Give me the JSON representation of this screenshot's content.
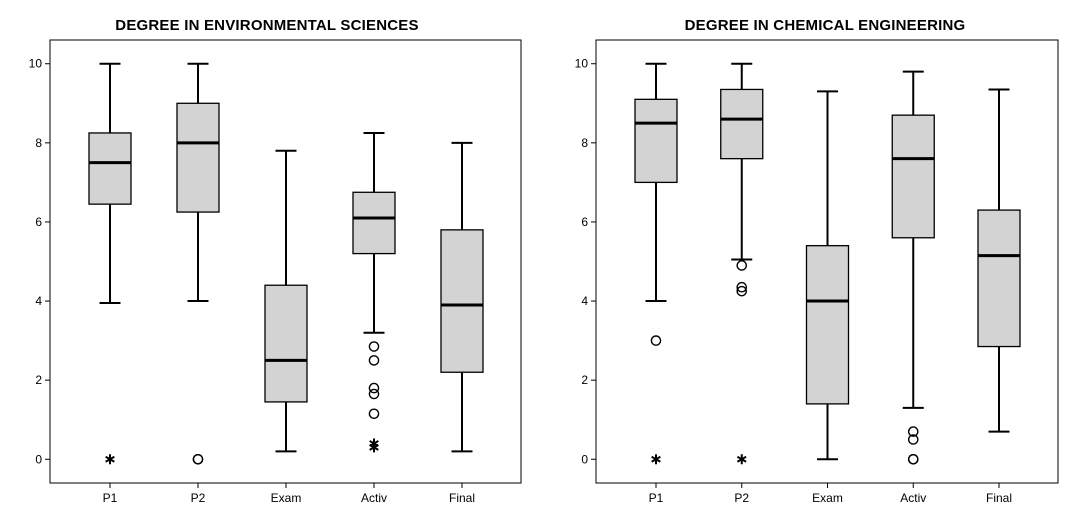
{
  "chart_data": [
    {
      "type": "boxplot",
      "title": "DEGREE IN ENVIRONMENTAL SCIENCES",
      "xlabel": "",
      "ylabel": "",
      "ylim": [
        -0.6,
        10.6
      ],
      "yticks": [
        0,
        2,
        4,
        6,
        8,
        10
      ],
      "grid": false,
      "categories": [
        "P1",
        "P2",
        "Exam",
        "Activ",
        "Final"
      ],
      "boxes": [
        {
          "category": "P1",
          "whisker_low": 3.95,
          "q1": 6.45,
          "median": 7.5,
          "q3": 8.25,
          "whisker_high": 10.0,
          "outliers": [],
          "extremes": [
            0.0
          ]
        },
        {
          "category": "P2",
          "whisker_low": 4.0,
          "q1": 6.25,
          "median": 8.0,
          "q3": 9.0,
          "whisker_high": 10.0,
          "outliers": [
            0.0,
            0.0
          ],
          "extremes": []
        },
        {
          "category": "Exam",
          "whisker_low": 0.2,
          "q1": 1.45,
          "median": 2.5,
          "q3": 4.4,
          "whisker_high": 7.8,
          "outliers": [],
          "extremes": []
        },
        {
          "category": "Activ",
          "whisker_low": 3.2,
          "q1": 5.2,
          "median": 6.1,
          "q3": 6.75,
          "whisker_high": 8.25,
          "outliers": [
            2.85,
            2.5,
            1.8,
            1.65,
            1.15
          ],
          "extremes": [
            0.4,
            0.3
          ]
        },
        {
          "category": "Final",
          "whisker_low": 0.2,
          "q1": 2.2,
          "median": 3.9,
          "q3": 5.8,
          "whisker_high": 8.0,
          "outliers": [],
          "extremes": []
        }
      ]
    },
    {
      "type": "boxplot",
      "title": "DEGREE IN CHEMICAL ENGINEERING",
      "xlabel": "",
      "ylabel": "",
      "ylim": [
        -0.6,
        10.6
      ],
      "yticks": [
        0,
        2,
        4,
        6,
        8,
        10
      ],
      "grid": false,
      "categories": [
        "P1",
        "P2",
        "Exam",
        "Activ",
        "Final"
      ],
      "boxes": [
        {
          "category": "P1",
          "whisker_low": 4.0,
          "q1": 7.0,
          "median": 8.5,
          "q3": 9.1,
          "whisker_high": 10.0,
          "outliers": [
            3.0
          ],
          "extremes": [
            0.0
          ]
        },
        {
          "category": "P2",
          "whisker_low": 5.05,
          "q1": 7.6,
          "median": 8.6,
          "q3": 9.35,
          "whisker_high": 10.0,
          "outliers": [
            4.9,
            4.35,
            4.25
          ],
          "extremes": [
            0.0
          ]
        },
        {
          "category": "Exam",
          "whisker_low": 0.0,
          "q1": 1.4,
          "median": 4.0,
          "q3": 5.4,
          "whisker_high": 9.3,
          "outliers": [],
          "extremes": []
        },
        {
          "category": "Activ",
          "whisker_low": 1.3,
          "q1": 5.6,
          "median": 7.6,
          "q3": 8.7,
          "whisker_high": 9.8,
          "outliers": [
            0.7,
            0.5,
            0.0,
            0.0
          ],
          "extremes": []
        },
        {
          "category": "Final",
          "whisker_low": 0.7,
          "q1": 2.85,
          "median": 5.15,
          "q3": 6.3,
          "whisker_high": 9.35,
          "outliers": [],
          "extremes": []
        }
      ]
    }
  ],
  "style": {
    "box_fill": "#d3d3d3",
    "line_color": "#000000",
    "background": "#ffffff"
  }
}
